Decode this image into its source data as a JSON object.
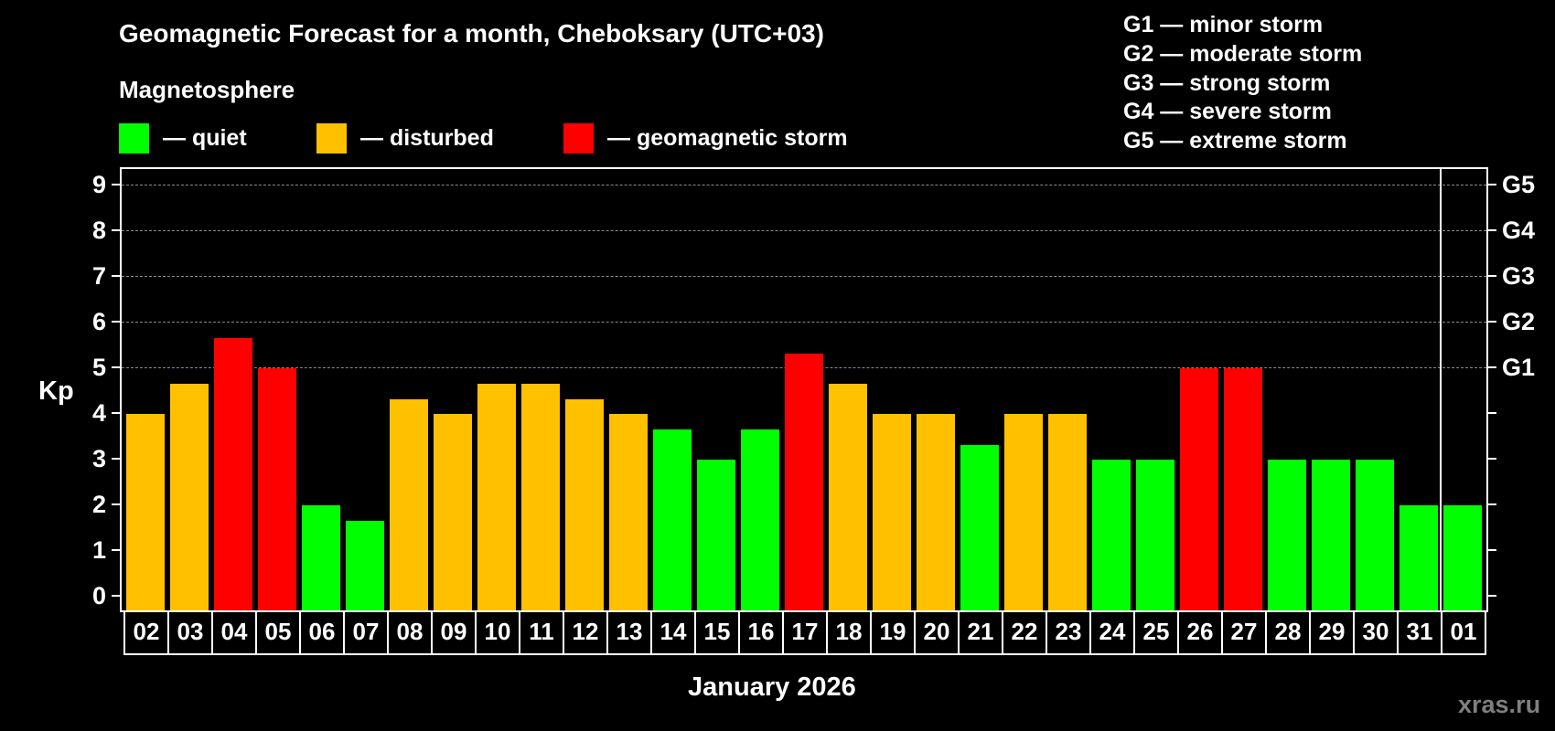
{
  "title": "Geomagnetic Forecast for a month, Cheboksary (UTC+03)",
  "subtitle": "Magnetosphere",
  "legend": [
    {
      "label": "— quiet",
      "color": "#00FF00"
    },
    {
      "label": "— disturbed",
      "color": "#FFC000"
    },
    {
      "label": "— geomagnetic storm",
      "color": "#FF0000"
    }
  ],
  "g_legend": [
    "G1 — minor storm",
    "G2 — moderate storm",
    "G3 — strong storm",
    "G4 — severe storm",
    "G5 — extreme storm"
  ],
  "axis": {
    "ylabel": "Kp",
    "xlabel": "January 2026",
    "yticks": [
      "0",
      "1",
      "2",
      "3",
      "4",
      "5",
      "6",
      "7",
      "8",
      "9"
    ],
    "right_labels": [
      {
        "kp": 5,
        "label": "G1"
      },
      {
        "kp": 6,
        "label": "G2"
      },
      {
        "kp": 7,
        "label": "G3"
      },
      {
        "kp": 8,
        "label": "G4"
      },
      {
        "kp": 9,
        "label": "G5"
      }
    ]
  },
  "watermark": "xras.ru",
  "colors": {
    "quiet": "#00FF00",
    "disturbed": "#FFC000",
    "storm": "#FF0000",
    "grid": "#8a8a8a",
    "background": "#000000"
  },
  "chart_data": {
    "type": "bar",
    "title": "Geomagnetic Forecast for a month, Cheboksary (UTC+03)",
    "xlabel": "January 2026",
    "ylabel": "Kp",
    "ylim": [
      0,
      9
    ],
    "grid": "dashed horizontal lines at Kp 5-9",
    "legend_position": "top",
    "categories": [
      "02",
      "03",
      "04",
      "05",
      "06",
      "07",
      "08",
      "09",
      "10",
      "11",
      "12",
      "13",
      "14",
      "15",
      "16",
      "17",
      "18",
      "19",
      "20",
      "21",
      "22",
      "23",
      "24",
      "25",
      "26",
      "27",
      "28",
      "29",
      "30",
      "31",
      "01"
    ],
    "values": [
      4.0,
      4.67,
      5.67,
      5.0,
      2.0,
      1.67,
      4.33,
      4.0,
      4.67,
      4.67,
      4.33,
      4.0,
      3.67,
      3.0,
      3.67,
      5.33,
      4.67,
      4.0,
      4.0,
      3.33,
      4.0,
      4.0,
      3.0,
      3.0,
      5.0,
      5.0,
      3.0,
      3.0,
      3.0,
      2.0,
      2.0
    ],
    "status": [
      "disturbed",
      "disturbed",
      "storm",
      "storm",
      "quiet",
      "quiet",
      "disturbed",
      "disturbed",
      "disturbed",
      "disturbed",
      "disturbed",
      "disturbed",
      "quiet",
      "quiet",
      "quiet",
      "storm",
      "disturbed",
      "disturbed",
      "disturbed",
      "quiet",
      "disturbed",
      "disturbed",
      "quiet",
      "quiet",
      "storm",
      "storm",
      "quiet",
      "quiet",
      "quiet",
      "quiet",
      "quiet"
    ],
    "right_axis_labels": {
      "5": "G1",
      "6": "G2",
      "7": "G3",
      "8": "G4",
      "9": "G5"
    }
  }
}
